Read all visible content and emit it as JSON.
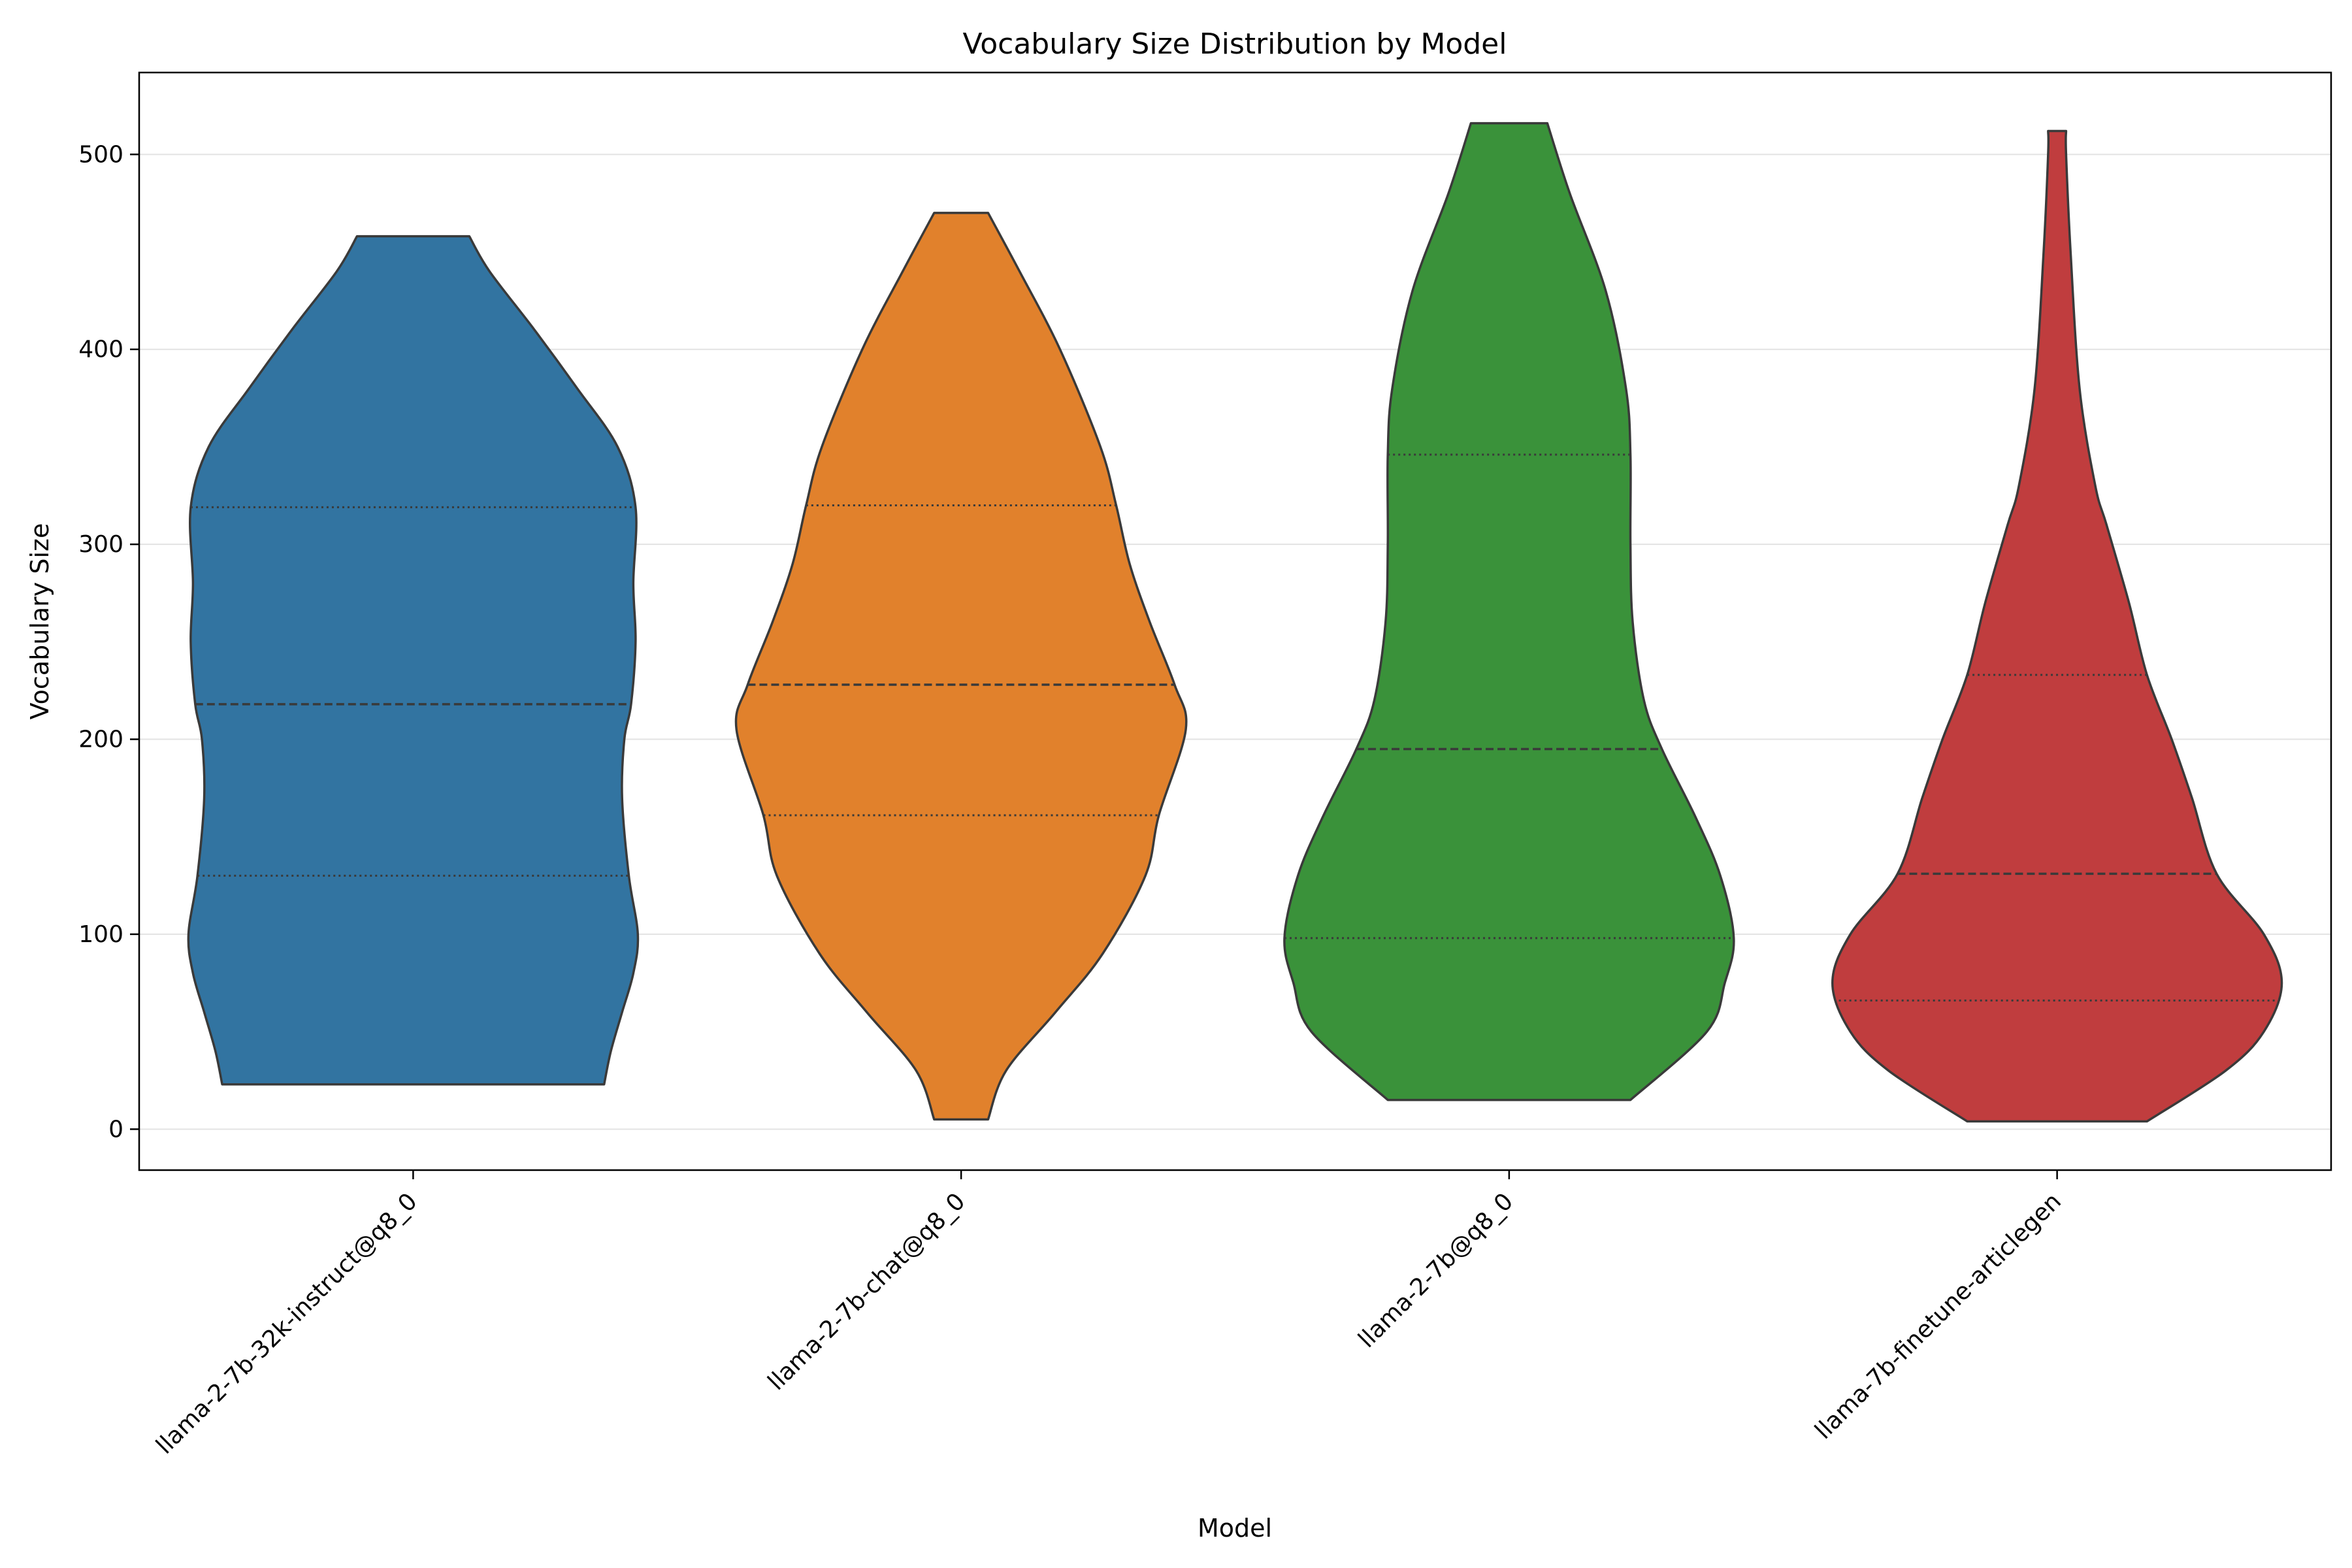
{
  "chart_data": {
    "type": "violin",
    "title": "Vocabulary Size Distribution by Model",
    "xlabel": "Model",
    "ylabel": "Vocabulary Size",
    "ylim": [
      -21,
      542
    ],
    "yticks": [
      0,
      100,
      200,
      300,
      400,
      500
    ],
    "grid": "horizontal",
    "categories": [
      "llama-2-7b-32k-instruct@q8_0",
      "llama-2-7b-chat@q8_0",
      "llama-2-7b@q8_0",
      "llama-7b-finetune-articlegen"
    ],
    "series": [
      {
        "category": "llama-2-7b-32k-instruct@q8_0",
        "color": "#3274a1",
        "min": 23,
        "q1": 130,
        "median": 218,
        "q3": 319,
        "max": 458,
        "density": [
          [
            23,
            0.85
          ],
          [
            40,
            0.88
          ],
          [
            60,
            0.93
          ],
          [
            80,
            0.98
          ],
          [
            100,
            1.0
          ],
          [
            130,
            0.96
          ],
          [
            170,
            0.93
          ],
          [
            200,
            0.94
          ],
          [
            218,
            0.97
          ],
          [
            250,
            0.99
          ],
          [
            280,
            0.98
          ],
          [
            319,
            0.99
          ],
          [
            350,
            0.91
          ],
          [
            380,
            0.73
          ],
          [
            410,
            0.54
          ],
          [
            440,
            0.34
          ],
          [
            458,
            0.25
          ]
        ]
      },
      {
        "category": "llama-2-7b-chat@q8_0",
        "color": "#e1812c",
        "min": 5,
        "q1": 161,
        "median": 228,
        "q3": 320,
        "max": 470,
        "density": [
          [
            5,
            0.12
          ],
          [
            30,
            0.2
          ],
          [
            60,
            0.42
          ],
          [
            90,
            0.63
          ],
          [
            130,
            0.82
          ],
          [
            161,
            0.88
          ],
          [
            205,
            1.0
          ],
          [
            228,
            0.95
          ],
          [
            260,
            0.84
          ],
          [
            290,
            0.75
          ],
          [
            320,
            0.69
          ],
          [
            350,
            0.62
          ],
          [
            400,
            0.44
          ],
          [
            440,
            0.26
          ],
          [
            470,
            0.12
          ]
        ]
      },
      {
        "category": "llama-2-7b@q8_0",
        "color": "#3a923a",
        "min": 15,
        "q1": 98,
        "median": 195,
        "q3": 346,
        "max": 516,
        "density": [
          [
            15,
            0.54
          ],
          [
            50,
            0.88
          ],
          [
            75,
            0.96
          ],
          [
            98,
            1.0
          ],
          [
            130,
            0.94
          ],
          [
            160,
            0.83
          ],
          [
            195,
            0.68
          ],
          [
            220,
            0.6
          ],
          [
            260,
            0.55
          ],
          [
            300,
            0.54
          ],
          [
            346,
            0.54
          ],
          [
            380,
            0.52
          ],
          [
            430,
            0.43
          ],
          [
            480,
            0.27
          ],
          [
            516,
            0.17
          ]
        ]
      },
      {
        "category": "llama-7b-finetune-articlegen",
        "color": "#c03d3e",
        "min": 4,
        "q1": 66,
        "median": 131,
        "q3": 233,
        "max": 512,
        "density": [
          [
            4,
            0.4
          ],
          [
            30,
            0.75
          ],
          [
            50,
            0.92
          ],
          [
            75,
            1.0
          ],
          [
            100,
            0.92
          ],
          [
            131,
            0.71
          ],
          [
            170,
            0.6
          ],
          [
            200,
            0.51
          ],
          [
            233,
            0.4
          ],
          [
            270,
            0.32
          ],
          [
            310,
            0.22
          ],
          [
            330,
            0.17
          ],
          [
            380,
            0.1
          ],
          [
            450,
            0.06
          ],
          [
            500,
            0.04
          ],
          [
            512,
            0.04
          ]
        ]
      }
    ]
  }
}
